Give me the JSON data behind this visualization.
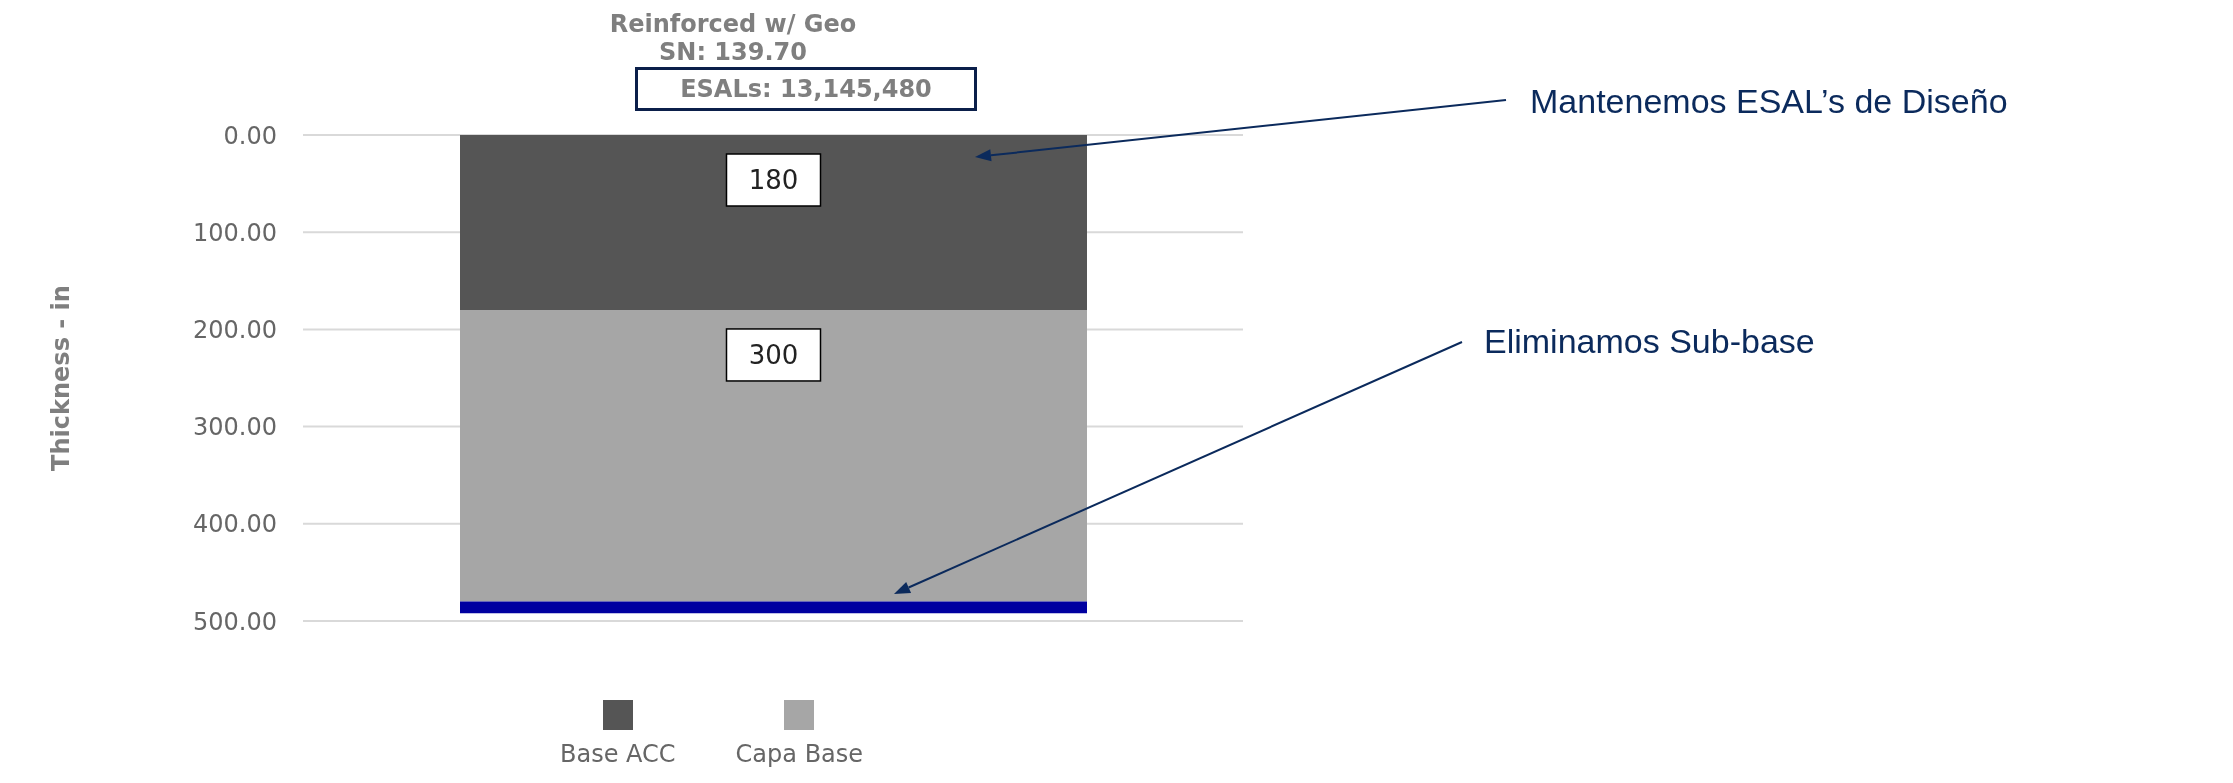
{
  "chart_data": {
    "type": "bar",
    "title": "Reinforced w/ Geo",
    "subtitle": "SN: 139.70",
    "annotations": [
      "ESALs: 13,145,480",
      "Mantenemos ESAL’s de Diseño",
      "Eliminamos Sub-base"
    ],
    "ylabel": "Thickness - in",
    "categories": [
      null
    ],
    "stacked": true,
    "series": [
      {
        "name": "Base ACC",
        "color": "#555555",
        "values": [
          180
        ],
        "value_labels": [
          "180"
        ]
      },
      {
        "name": "Capa Base",
        "color": "#a6a6a6",
        "values": [
          300
        ],
        "value_labels": [
          "300"
        ]
      },
      {
        "color": "#0000a0",
        "values": [
          12
        ],
        "value_labels": [
          null
        ]
      }
    ],
    "ylim": [
      500,
      0
    ],
    "yticks": [
      {
        "value": 0,
        "label": "0.00"
      },
      {
        "value": 100,
        "label": "100.00"
      },
      {
        "value": 200,
        "label": "200.00"
      },
      {
        "value": 300,
        "label": "300.00"
      },
      {
        "value": 400,
        "label": "400.00"
      },
      {
        "value": 500,
        "label": "500.00"
      }
    ],
    "grid": "y",
    "legend": "bottom"
  }
}
